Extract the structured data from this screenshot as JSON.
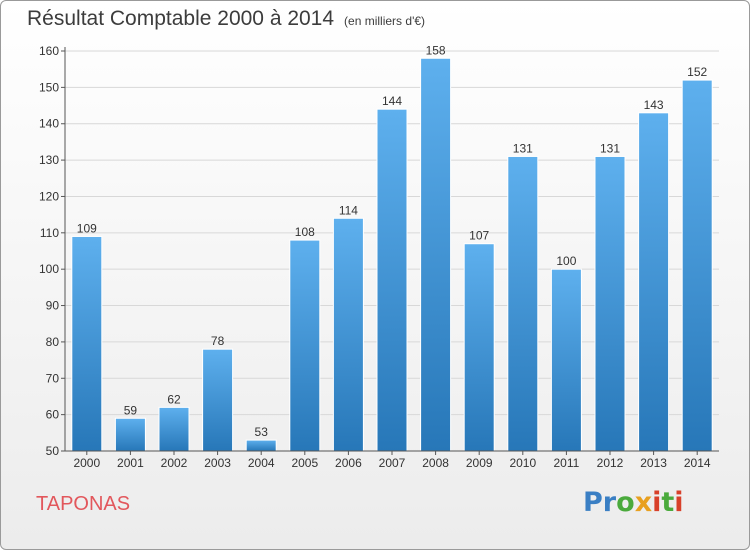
{
  "chart_data": {
    "type": "bar",
    "title": "Résultat Comptable 2000 à 2014",
    "subtitle": "(en milliers d'€)",
    "categories": [
      "2000",
      "2001",
      "2002",
      "2003",
      "2004",
      "2005",
      "2006",
      "2007",
      "2008",
      "2009",
      "2010",
      "2011",
      "2012",
      "2013",
      "2014"
    ],
    "values": [
      109,
      59,
      62,
      78,
      53,
      108,
      114,
      144,
      158,
      107,
      131,
      100,
      131,
      143,
      152
    ],
    "ylim": [
      50,
      160
    ],
    "yticks": [
      50,
      60,
      70,
      80,
      90,
      100,
      110,
      120,
      130,
      140,
      150,
      160
    ],
    "grid": true,
    "xlabel": "",
    "ylabel": ""
  },
  "commune": "TAPONAS",
  "brand": {
    "letters": [
      "P",
      "r",
      "o",
      "x",
      "i",
      "t",
      "i"
    ],
    "colors": [
      "#3a7fc4",
      "#3a7fc4",
      "#4aaa3c",
      "#e8a020",
      "#d8402a",
      "#4aaa3c",
      "#d8402a"
    ]
  },
  "colors": {
    "bar_top": "#5eb0ee",
    "bar_bottom": "#2777b8",
    "grid": "#d8d8d8",
    "axis": "#555555"
  }
}
